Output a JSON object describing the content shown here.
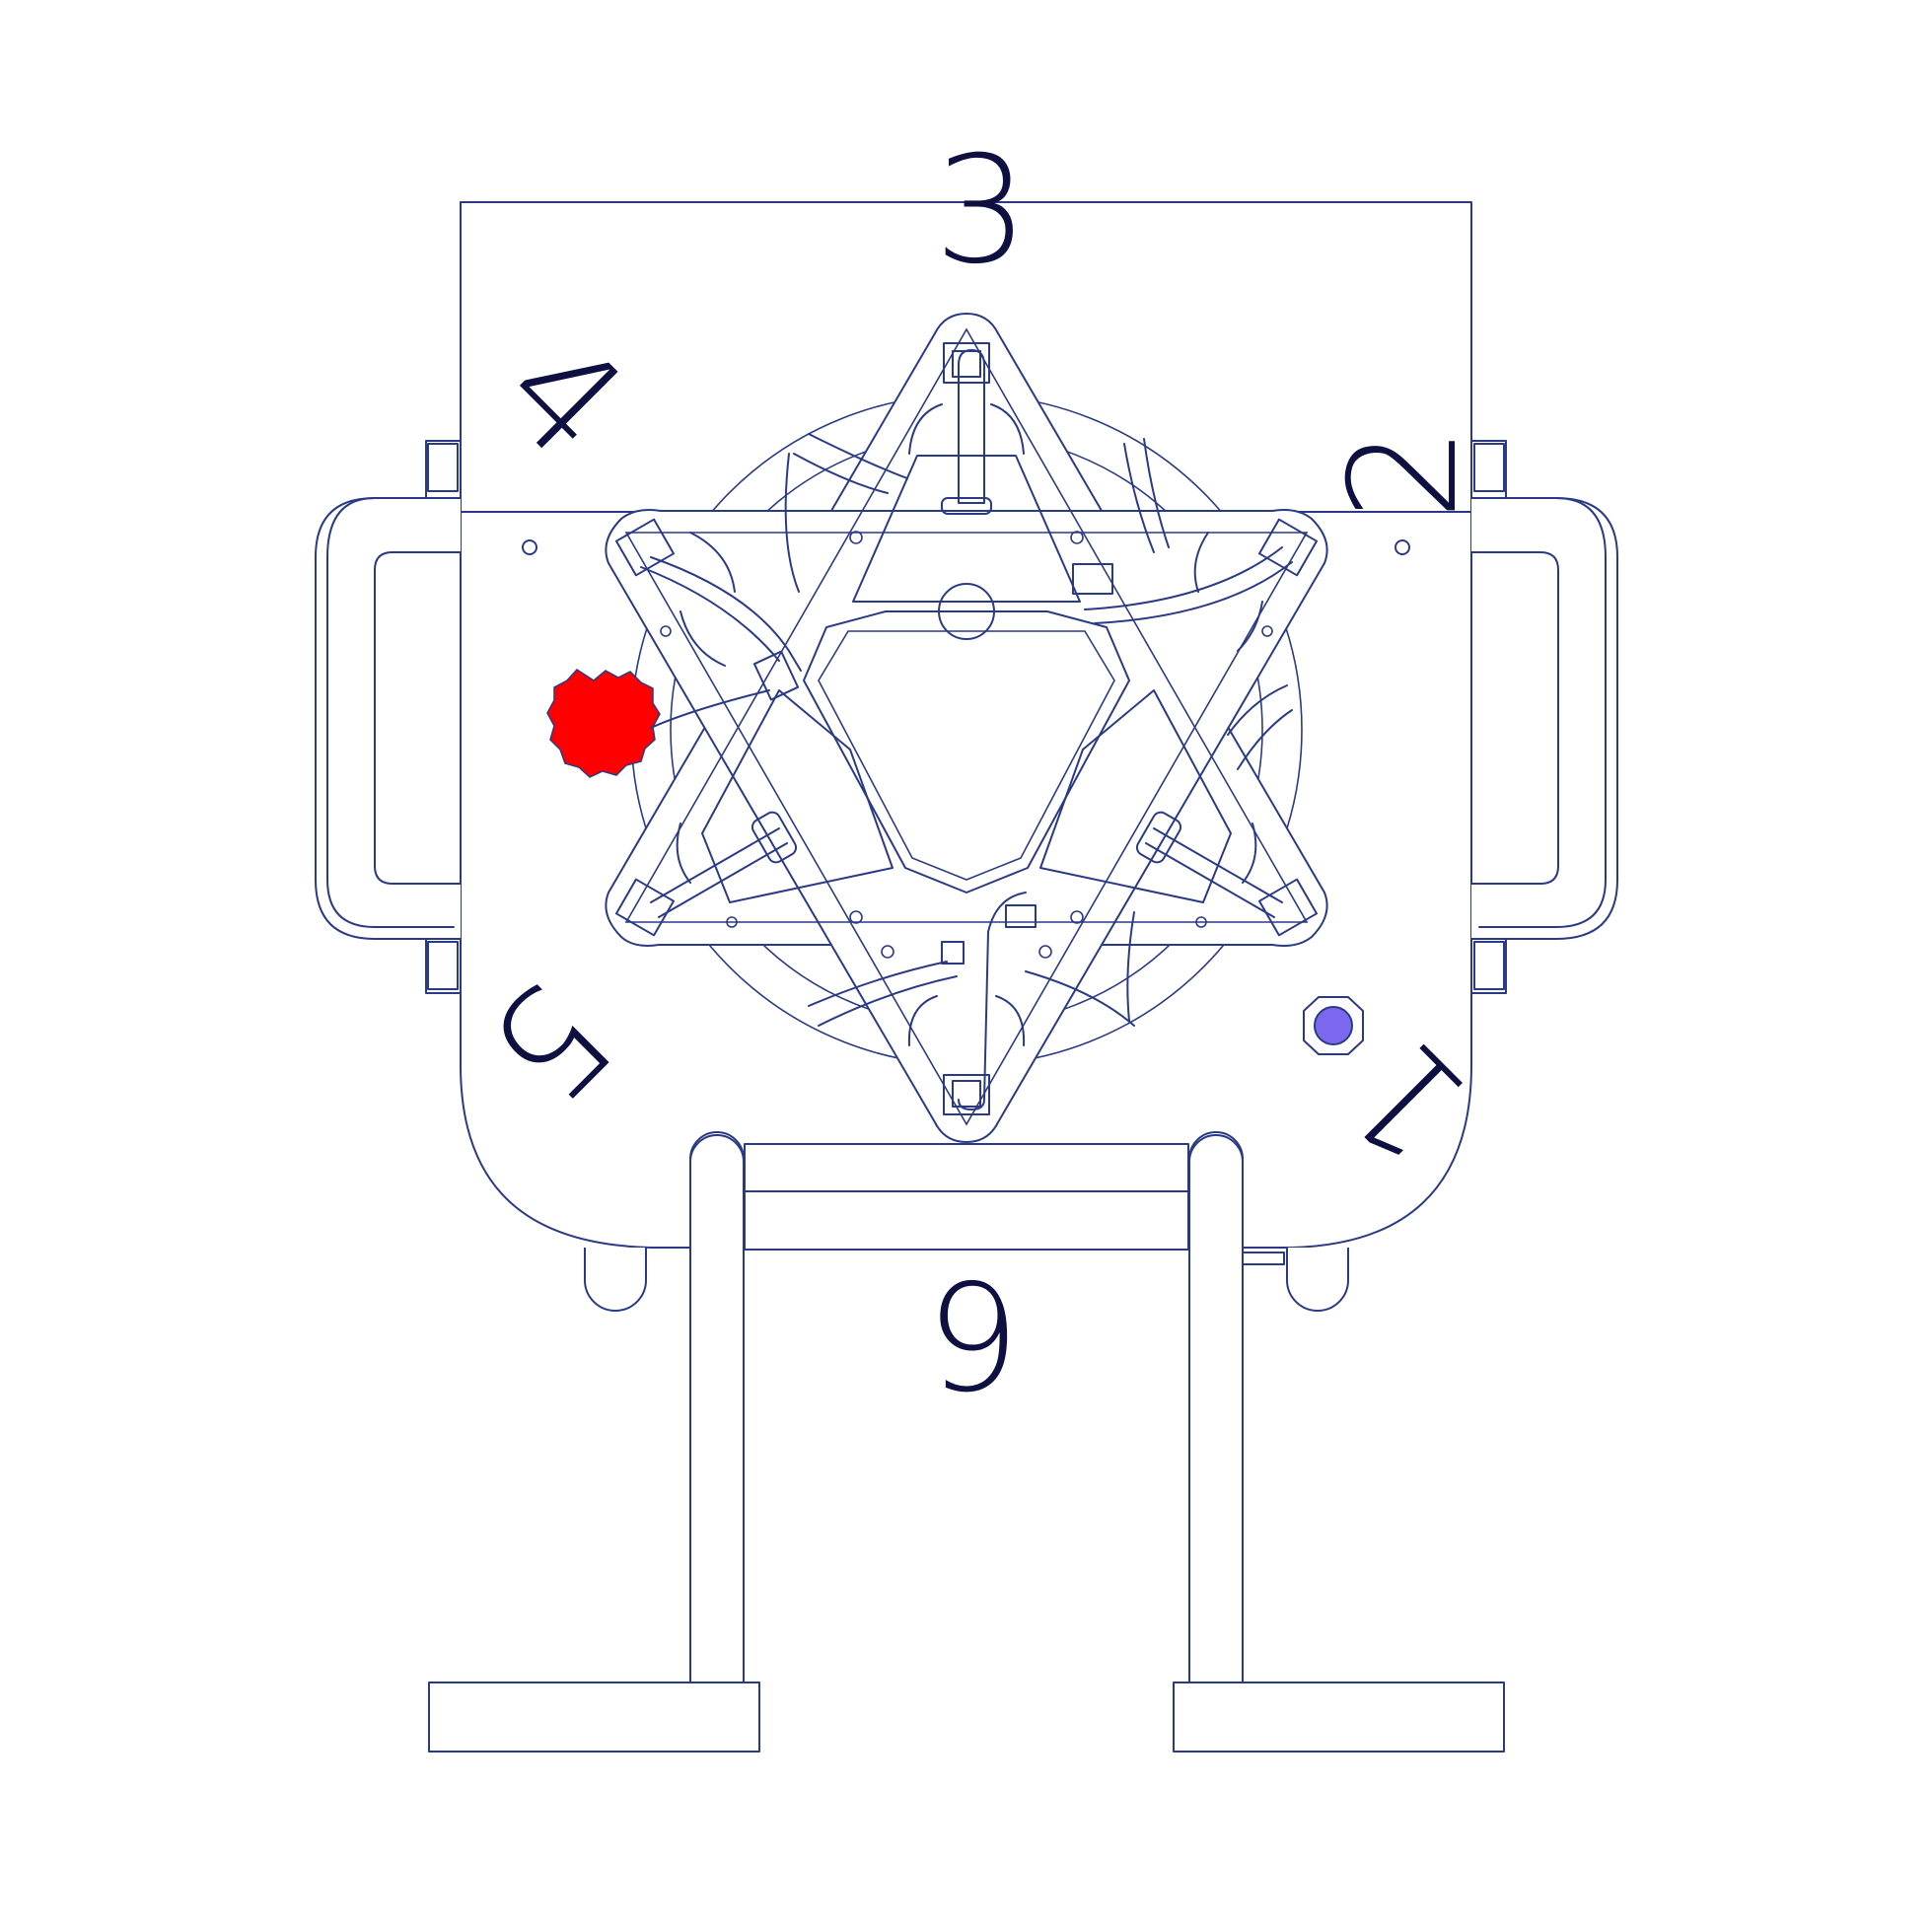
{
  "diagram": {
    "labels": {
      "label_1": "1",
      "label_2": "2",
      "label_3": "3",
      "label_4": "4",
      "label_5": "5",
      "label_6": "6"
    },
    "colors": {
      "line": "#2b3a85",
      "label_text": "#0d1040",
      "red_knob": "#ff0000",
      "blue_indicator": "#7b68ee"
    },
    "components": [
      "main-body",
      "left-handle",
      "right-handle",
      "star-mechanism",
      "red-knob",
      "blue-indicator",
      "stand-frame",
      "left-foot",
      "right-foot"
    ]
  }
}
